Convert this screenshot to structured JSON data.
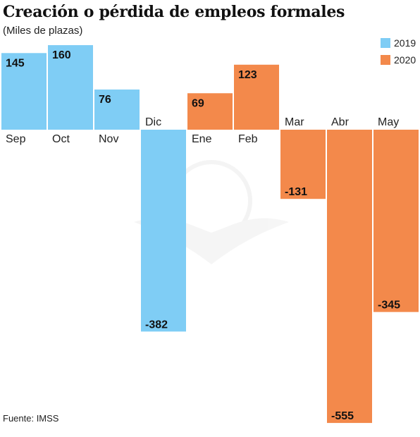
{
  "title": "Creación o pérdida de empleos formales",
  "subtitle": "(Miles de plazas)",
  "source": "Fuente: IMSS",
  "legend": [
    {
      "label": "2019",
      "color": "#7fcdf5"
    },
    {
      "label": "2020",
      "color": "#f3894b"
    }
  ],
  "chart_data": {
    "type": "bar",
    "categories": [
      "Sep",
      "Oct",
      "Nov",
      "Dic",
      "Ene",
      "Feb",
      "Mar",
      "Abr",
      "May"
    ],
    "values": [
      145,
      160,
      76,
      -382,
      69,
      123,
      -131,
      -555,
      -345
    ],
    "year": [
      "2019",
      "2019",
      "2019",
      "2019",
      "2020",
      "2020",
      "2020",
      "2020",
      "2020"
    ],
    "title": "Creación o pérdida de empleos formales",
    "ylabel": "(Miles de plazas)",
    "xlabel": "",
    "grid": false,
    "legend_position": "top-right"
  }
}
